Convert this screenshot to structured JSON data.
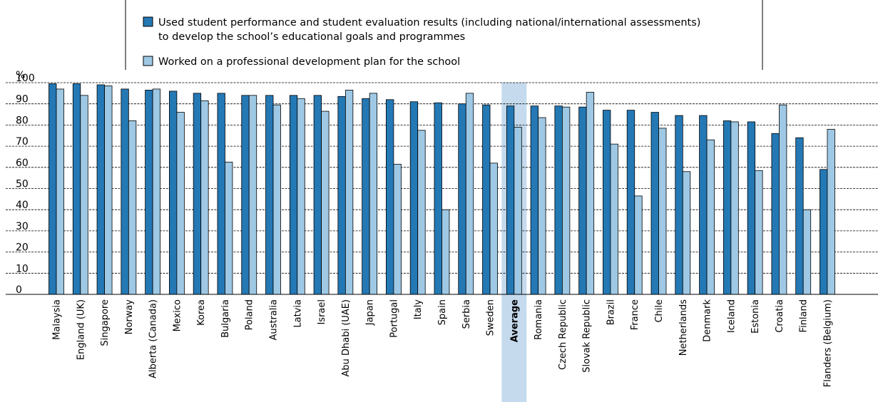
{
  "chart_data": {
    "type": "bar",
    "ylabel": "%",
    "ylim": [
      0,
      100
    ],
    "yticks": [
      0,
      10,
      20,
      30,
      40,
      50,
      60,
      70,
      80,
      90,
      100
    ],
    "grid": true,
    "legend_position": "top",
    "highlight_category": "Average",
    "categories": [
      "Malaysia",
      "England (UK)",
      "Singapore",
      "Norway",
      "Alberta (Canada)",
      "Mexico",
      "Korea",
      "Bulgaria",
      "Poland",
      "Australia",
      "Latvia",
      "Israel",
      "Abu Dhabi (UAE)",
      "Japan",
      "Portugal",
      "Italy",
      "Spain",
      "Serbia",
      "Sweden",
      "Average",
      "Romania",
      "Czech Republic",
      "Slovak Republic",
      "Brazil",
      "France",
      "Chile",
      "Netherlands",
      "Denmark",
      "Iceland",
      "Estonia",
      "Croatia",
      "Finland",
      "Flanders (Belgium)"
    ],
    "series": [
      {
        "name": "Used student performance and student evaluation results (including national/international assessments) to develop the school’s educational goals and programmes",
        "legend_lines": [
          "Used student performance and student evaluation results (including national/international assessments)",
          "to develop the school’s educational goals and programmes"
        ],
        "color": "#2478b4",
        "values": [
          99.5,
          99.5,
          99,
          97,
          96.5,
          96,
          95,
          95,
          94,
          94,
          94,
          94,
          93.5,
          92.5,
          92,
          91,
          90.5,
          90,
          89.5,
          89,
          89,
          89,
          88.5,
          87,
          87,
          86,
          84.5,
          84.5,
          82,
          81.5,
          76,
          74,
          59
        ]
      },
      {
        "name": "Worked on a professional development plan for the school",
        "legend_lines": [
          "Worked on a professional development plan for the school"
        ],
        "color": "#9ec8e4",
        "values": [
          97,
          94,
          98.5,
          82,
          97,
          86,
          91.5,
          62.5,
          94,
          89.5,
          92.5,
          86.5,
          96.5,
          95,
          61.5,
          77.5,
          40,
          95,
          62,
          79,
          83.5,
          88.5,
          95.5,
          71,
          46.5,
          78.5,
          58,
          73,
          81.5,
          58.5,
          89.5,
          40,
          78
        ]
      }
    ]
  }
}
